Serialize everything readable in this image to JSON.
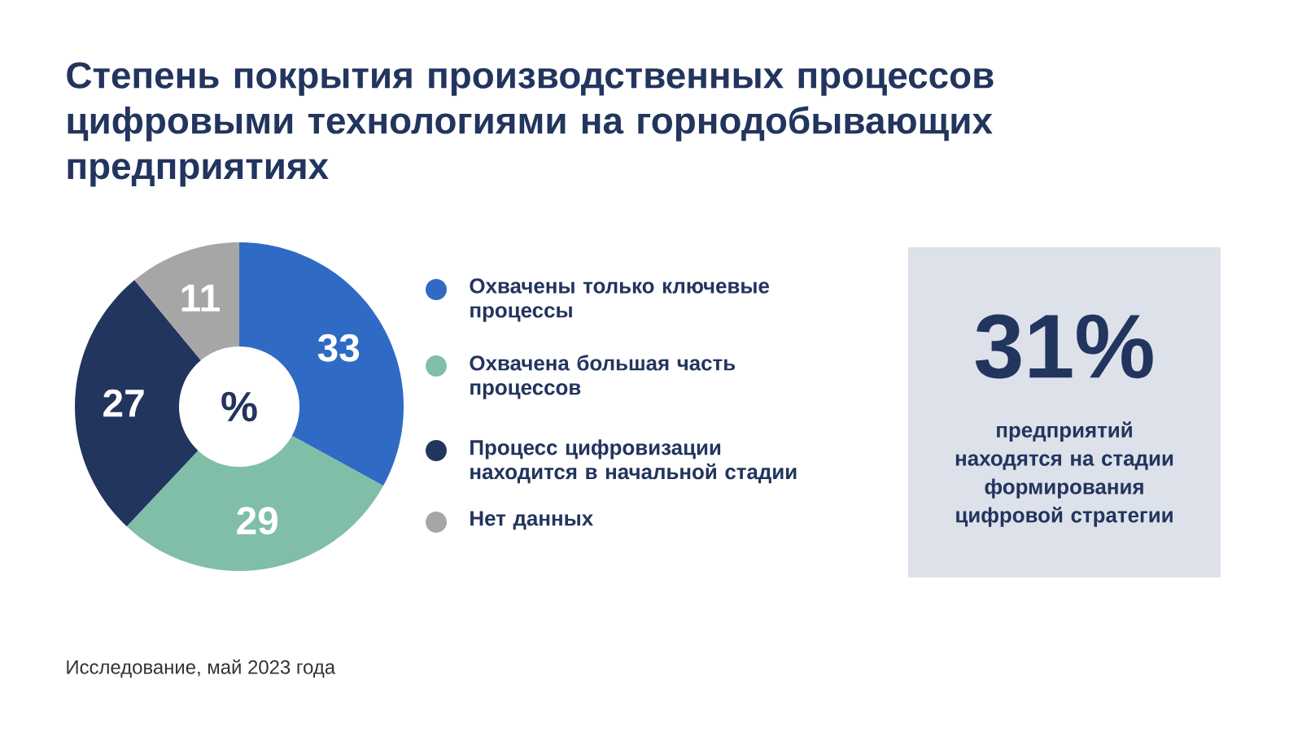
{
  "chart_data": {
    "type": "donut",
    "title": "Степень покрытия производственных процессов цифровыми технологиями на горнодобывающих предприятиях",
    "categories": [
      "Охвачены только ключевые процессы",
      "Охвачена большая часть процессов",
      "Процесс цифровизации находится в начальной стадии",
      "Нет данных"
    ],
    "values": [
      33,
      29,
      27,
      11
    ],
    "colors": [
      "#2f6bc4",
      "#80bea8",
      "#22355e",
      "#a6a6a6"
    ],
    "data_labels": true,
    "legend": "right",
    "annotations": [
      "%",
      "31%",
      "предприятий находятся на стадии формирования цифровой стратегии",
      "Исследование, май 2023 года"
    ]
  }
}
